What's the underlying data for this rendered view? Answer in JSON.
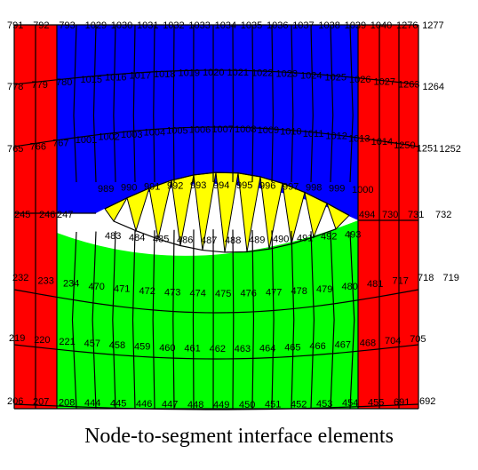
{
  "caption": "Node-to-segment interface elements",
  "colors": {
    "outer": "#ff0000",
    "upper": "#0000ff",
    "lower": "#00ff00",
    "contact": "#ffff00",
    "background": "#ffffff",
    "lines": "#000000"
  },
  "rows": {
    "r0": [
      "791",
      "792",
      "793",
      "1029",
      "1030",
      "1031",
      "1032",
      "1033",
      "1034",
      "1035",
      "1036",
      "1037",
      "1038",
      "1039",
      "1040",
      "1276",
      "1277"
    ],
    "r1": [
      "778",
      "779",
      "780",
      "1015",
      "1016",
      "1017",
      "1018",
      "1019",
      "1020",
      "1021",
      "1022",
      "1023",
      "1024",
      "1025",
      "1026",
      "1027",
      "1263",
      "1264"
    ],
    "r2": [
      "765",
      "766",
      "767",
      "1001",
      "1002",
      "1003",
      "1004",
      "1005",
      "1006",
      "1007",
      "1008",
      "1009",
      "1010",
      "1011",
      "1012",
      "1013",
      "1014",
      "1250",
      "1251",
      "1252"
    ],
    "r3": [
      "989",
      "990",
      "991",
      "992",
      "993",
      "994",
      "995",
      "996",
      "997",
      "998",
      "999",
      "1000"
    ],
    "r4": [
      "245",
      "246",
      "247",
      "494",
      "730",
      "731",
      "732"
    ],
    "r5": [
      "483",
      "484",
      "485",
      "486",
      "487",
      "488",
      "489",
      "490",
      "491",
      "492",
      "493"
    ],
    "r6": [
      "232",
      "233",
      "234",
      "470",
      "471",
      "472",
      "473",
      "474",
      "475",
      "476",
      "477",
      "478",
      "479",
      "480",
      "481",
      "717",
      "718",
      "719"
    ],
    "r7": [
      "219",
      "220",
      "221",
      "457",
      "458",
      "459",
      "460",
      "461",
      "462",
      "463",
      "464",
      "465",
      "466",
      "467",
      "468",
      "704",
      "705"
    ],
    "r8": [
      "206",
      "207",
      "208",
      "444",
      "445",
      "446",
      "447",
      "448",
      "449",
      "450",
      "451",
      "452",
      "453",
      "454",
      "455",
      "691",
      "692"
    ]
  }
}
